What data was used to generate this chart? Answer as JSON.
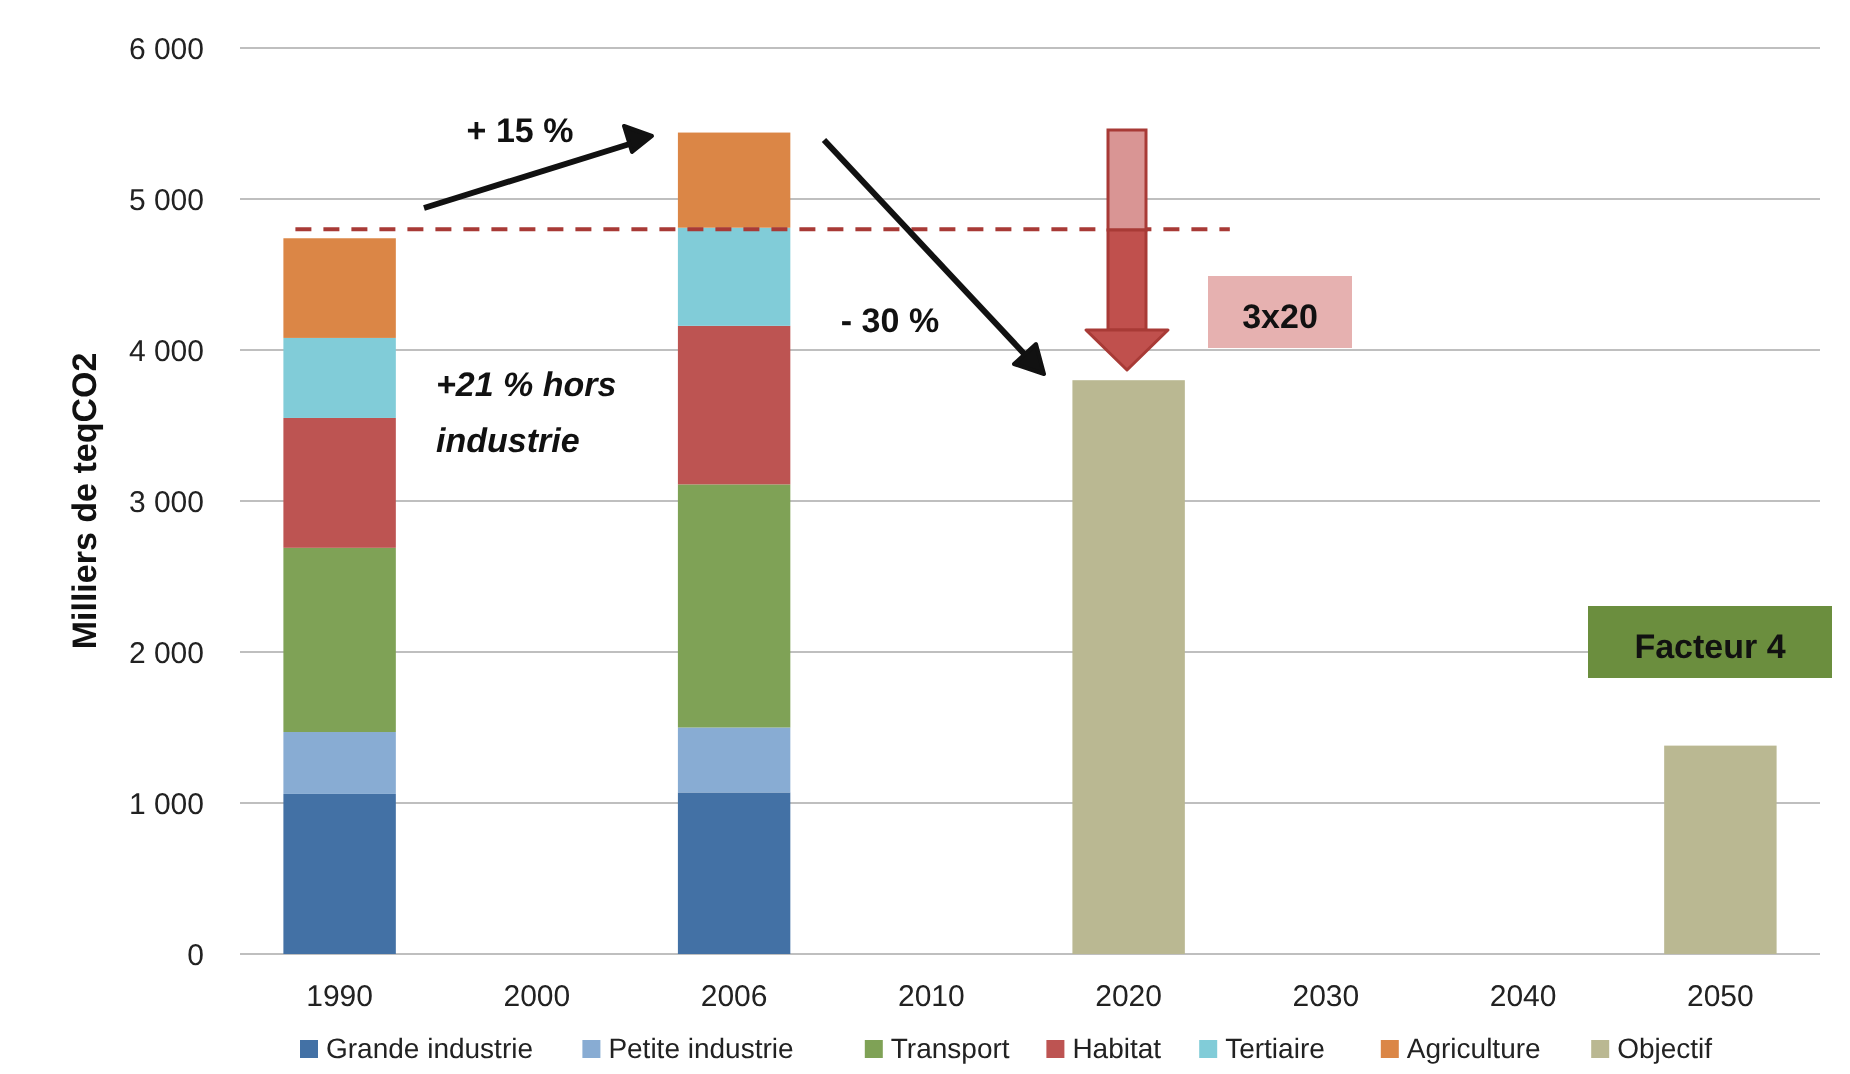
{
  "chart_data": {
    "type": "bar",
    "ylabel": "Milliers de teqCO2",
    "categories": [
      "1990",
      "2000",
      "2006",
      "2010",
      "2020",
      "2030",
      "2040",
      "2050"
    ],
    "stacked": true,
    "series": [
      {
        "name": "Grande industrie",
        "color": "#4371a5",
        "values": [
          1060,
          null,
          1070,
          null,
          null,
          null,
          null,
          null
        ]
      },
      {
        "name": "Petite industrie",
        "color": "#88acd3",
        "values": [
          410,
          null,
          430,
          null,
          null,
          null,
          null,
          null
        ]
      },
      {
        "name": "Transport",
        "color": "#7fa256",
        "values": [
          1220,
          null,
          1610,
          null,
          null,
          null,
          null,
          null
        ]
      },
      {
        "name": "Habitat",
        "color": "#bd5452",
        "values": [
          860,
          null,
          1050,
          null,
          null,
          null,
          null,
          null
        ]
      },
      {
        "name": "Tertiaire",
        "color": "#81ccd8",
        "values": [
          530,
          null,
          650,
          null,
          null,
          null,
          null,
          null
        ]
      },
      {
        "name": "Agriculture",
        "color": "#db8646",
        "values": [
          660,
          null,
          630,
          null,
          null,
          null,
          null,
          null
        ]
      },
      {
        "name": "Objectif",
        "color": "#bab892",
        "values": [
          null,
          null,
          null,
          null,
          3800,
          null,
          null,
          1380
        ]
      }
    ],
    "ylim": [
      0,
      6000
    ],
    "yticks": [
      {
        "value": 0,
        "label": "0"
      },
      {
        "value": 1000,
        "label": "1 000"
      },
      {
        "value": 2000,
        "label": "2 000"
      },
      {
        "value": 3000,
        "label": "3 000"
      },
      {
        "value": 4000,
        "label": "4 000"
      },
      {
        "value": 5000,
        "label": "5 000"
      },
      {
        "value": 6000,
        "label": "6 000"
      }
    ],
    "grid": "y",
    "legend": "bottom",
    "ref_lines": [
      {
        "axis": "y",
        "value": 4800,
        "color": "#a83a36",
        "line_style": "dashed"
      }
    ],
    "annotations": [
      "+ 15 %",
      "- 30 %",
      "+21 % hors industrie",
      "3x20",
      "Facteur 4"
    ]
  }
}
